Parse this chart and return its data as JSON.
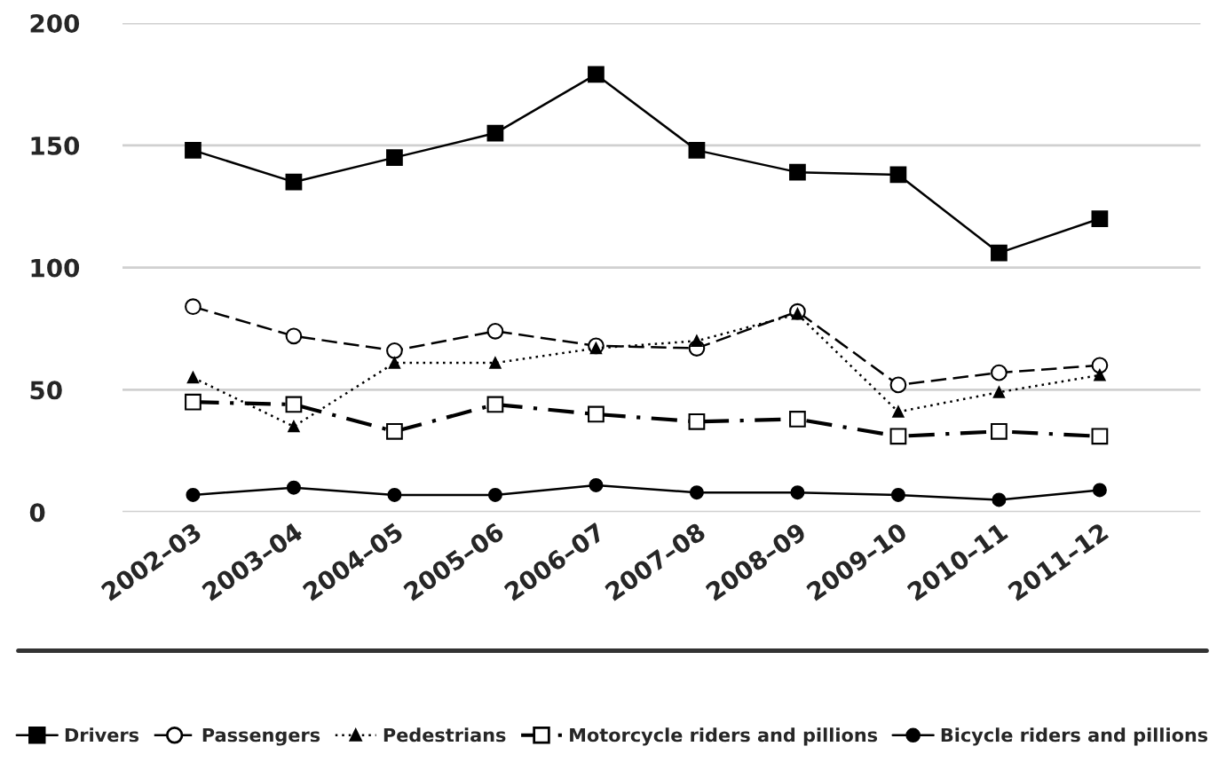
{
  "chart_data": {
    "type": "line",
    "categories": [
      "2002–03",
      "2003–04",
      "2004–05",
      "2005–06",
      "2006–07",
      "2007–08",
      "2008–09",
      "2009–10",
      "2010–11",
      "2011–12"
    ],
    "series": [
      {
        "name": "Drivers",
        "color": "#000000",
        "marker": "square",
        "line_style": "solid",
        "values": [
          148,
          135,
          145,
          155,
          179,
          148,
          139,
          138,
          106,
          120
        ]
      },
      {
        "name": "Passengers",
        "color": "#000000",
        "marker": "circle-open",
        "line_style": "dashed",
        "values": [
          84,
          72,
          66,
          74,
          68,
          67,
          82,
          52,
          57,
          60
        ]
      },
      {
        "name": "Pedestrians",
        "color": "#000000",
        "marker": "triangle",
        "line_style": "dotted",
        "values": [
          55,
          35,
          61,
          61,
          67,
          70,
          81,
          41,
          49,
          56
        ]
      },
      {
        "name": "Motorcycle riders and pillions",
        "color": "#000000",
        "marker": "square-open",
        "line_style": "dashdot",
        "values": [
          45,
          44,
          33,
          44,
          40,
          37,
          38,
          31,
          33,
          31
        ]
      },
      {
        "name": "Bicycle riders and pillions",
        "color": "#000000",
        "marker": "circle",
        "line_style": "solid",
        "values": [
          7,
          10,
          7,
          7,
          11,
          8,
          8,
          7,
          5,
          9
        ]
      }
    ],
    "ylim": [
      0,
      200
    ],
    "yticks": [
      0,
      50,
      100,
      150,
      200
    ],
    "grid": "y",
    "legend": "bottom"
  }
}
